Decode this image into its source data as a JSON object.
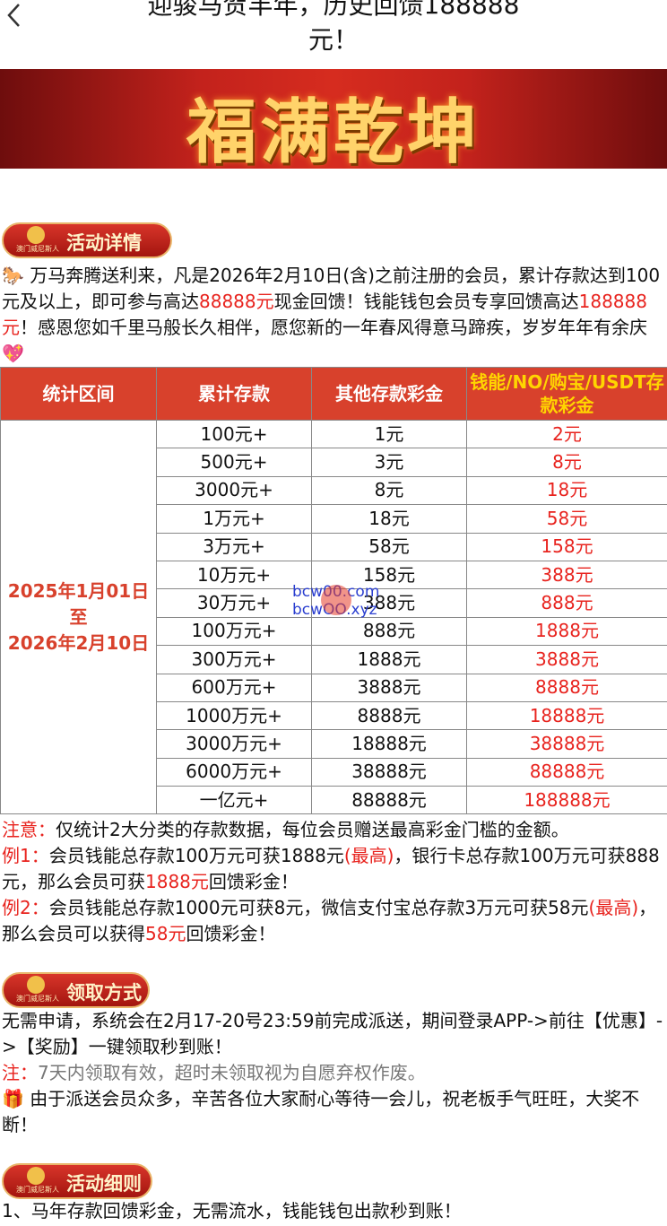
{
  "header": {
    "title": "迎骏马贺丰年，历史回馈188888元！"
  },
  "banner": {
    "text": "福满乾坤"
  },
  "badges": [
    {
      "brand": "澳门威尼斯人",
      "label": "活动详情"
    },
    {
      "brand": "澳门威尼斯人",
      "label": "领取方式"
    },
    {
      "brand": "澳门威尼斯人",
      "label": "活动细则"
    }
  ],
  "intro": [
    {
      "text": "🐎 万马奔腾送利来，凡是2026年2月10日(含)之前注册的会员，累计存款达到100元及以上，即可参与高达"
    },
    {
      "text": "88888元",
      "color": "#e8231e"
    },
    {
      "text": "现金回馈！钱能钱包会员专享回馈高达"
    },
    {
      "text": "188888元",
      "color": "#e8231e"
    },
    {
      "text": "！感恩您如千里马般长久相伴，愿您新的一年春风得意马蹄疾，岁岁年年有余庆💖"
    }
  ],
  "table": {
    "headers": [
      "统计区间",
      "累计存款",
      "其他存款彩金",
      "钱能/NO/购宝/USDT存款彩金"
    ],
    "period": [
      "2025年1月01日",
      "至",
      "2026年2月10日"
    ],
    "rows": [
      [
        "100元+",
        "1元",
        "2元"
      ],
      [
        "500元+",
        "3元",
        "8元"
      ],
      [
        "3000元+",
        "8元",
        "18元"
      ],
      [
        "1万元+",
        "18元",
        "58元"
      ],
      [
        "3万元+",
        "58元",
        "158元"
      ],
      [
        "10万元+",
        "158元",
        "388元"
      ],
      [
        "30万元+",
        "388元",
        "888元"
      ],
      [
        "100万元+",
        "888元",
        "1888元"
      ],
      [
        "300万元+",
        "1888元",
        "3888元"
      ],
      [
        "600万元+",
        "3888元",
        "8888元"
      ],
      [
        "1000万元+",
        "8888元",
        "18888元"
      ],
      [
        "3000万元+",
        "18888元",
        "38888元"
      ],
      [
        "6000万元+",
        "38888元",
        "88888元"
      ],
      [
        "一亿元+",
        "88888元",
        "188888元"
      ]
    ]
  },
  "watermark": [
    "bcw00.com",
    "bcwOO.xyz"
  ],
  "notes": [
    [
      {
        "text": "注意：",
        "color": "#e8231e"
      },
      {
        "text": "仅统计2大分类的存款数据，每位会员赠送最高彩金门槛的金额。"
      }
    ],
    [
      {
        "text": "例1：",
        "color": "#e8231e"
      },
      {
        "text": "会员钱能总存款100万元可获1888元"
      },
      {
        "text": "(最高)",
        "color": "#e8231e"
      },
      {
        "text": "，银行卡总存款100万元可获888元，那么会员可获"
      },
      {
        "text": "1888元",
        "color": "#e8231e"
      },
      {
        "text": "回馈彩金！"
      }
    ],
    [
      {
        "text": "例2：",
        "color": "#e8231e"
      },
      {
        "text": "会员钱能总存款1000元可获8元，微信支付宝总存款3万元可获58元"
      },
      {
        "text": "(最高)",
        "color": "#e8231e"
      },
      {
        "text": "，那么会员可以获得"
      },
      {
        "text": "58元",
        "color": "#e8231e"
      },
      {
        "text": "回馈彩金！"
      }
    ]
  ],
  "claim": [
    [
      {
        "text": "无需申请，系统会在2月17-20号23:59前完成派送，期间登录APP->前往【优惠】->【奖励】一键领取秒到账！"
      }
    ],
    [
      {
        "text": "注：",
        "color": "#e8231e"
      },
      {
        "text": "7天内领取有效，超时未领取视为自愿弃权作废。",
        "color": "#777777"
      }
    ],
    [
      {
        "text": "🎁 由于派送会员众多，辛苦各位大家耐心等待一会儿，祝老板手气旺旺，大奖不断！"
      }
    ]
  ],
  "rules": [
    [
      {
        "text": "1、马年存款回馈彩金，无需流水，钱能钱包出款秒到账！"
      }
    ]
  ]
}
